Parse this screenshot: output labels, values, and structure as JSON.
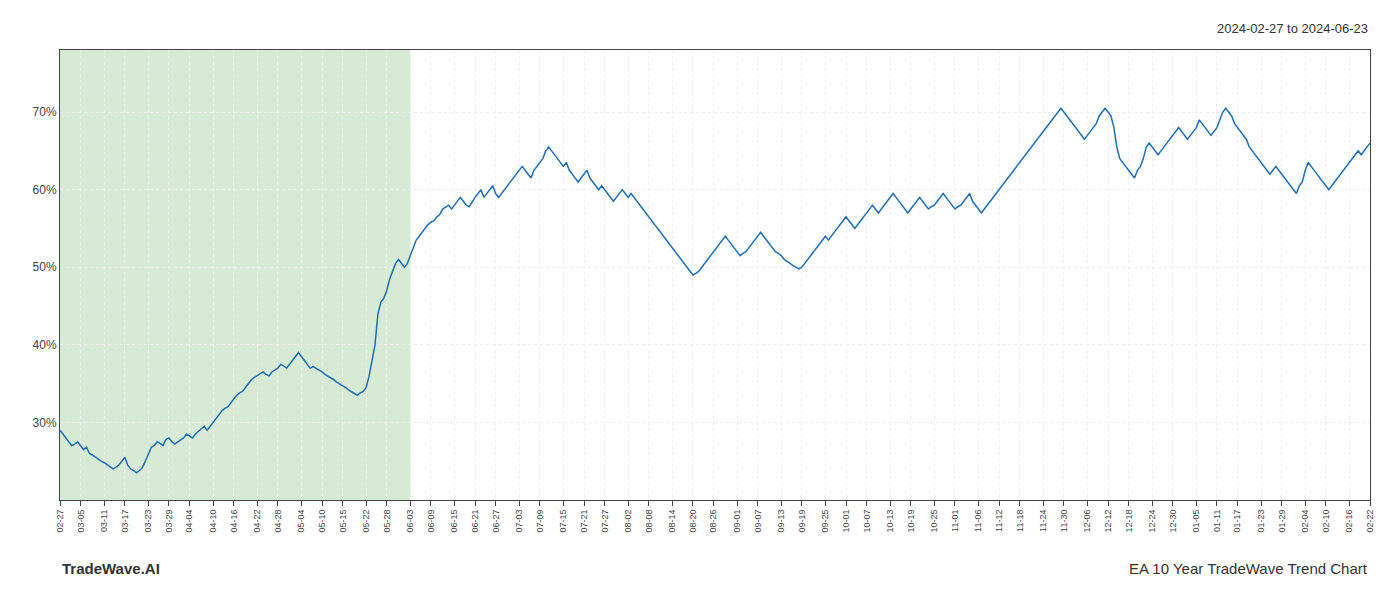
{
  "chart_data": {
    "type": "line",
    "annotations": [
      "2024-02-27 to 2024-06-23",
      "TradeWave.AI",
      "EA 10 Year TradeWave Trend Chart"
    ],
    "categories": [
      "02-27",
      null,
      null,
      null,
      null,
      null,
      null,
      "03-05",
      null,
      null,
      null,
      null,
      null,
      null,
      null,
      "03-11",
      null,
      null,
      null,
      null,
      null,
      null,
      "03-17",
      null,
      null,
      null,
      null,
      null,
      null,
      null,
      "03-23",
      null,
      null,
      null,
      null,
      null,
      null,
      "03-29",
      null,
      null,
      null,
      null,
      null,
      null,
      "04-04",
      null,
      null,
      null,
      null,
      null,
      null,
      null,
      "04-10",
      null,
      null,
      null,
      null,
      null,
      null,
      "04-16",
      null,
      null,
      null,
      null,
      null,
      null,
      null,
      "04-22",
      null,
      null,
      null,
      null,
      null,
      null,
      "04-28",
      null,
      null,
      null,
      null,
      null,
      null,
      null,
      "05-04",
      null,
      null,
      null,
      null,
      null,
      null,
      "05-10",
      null,
      null,
      null,
      null,
      null,
      null,
      "05-15",
      null,
      null,
      null,
      null,
      null,
      null,
      null,
      "05-22",
      null,
      null,
      null,
      null,
      null,
      null,
      "05-28",
      null,
      null,
      null,
      null,
      null,
      null,
      null,
      "06-03",
      null,
      null,
      null,
      null,
      null,
      null,
      "06-09",
      null,
      null,
      null,
      null,
      null,
      null,
      null,
      "06-15",
      null,
      null,
      null,
      null,
      null,
      null,
      "06-21",
      null,
      null,
      null,
      null,
      null,
      null,
      "06-27",
      null,
      null,
      null,
      null,
      null,
      null,
      null,
      "07-03",
      null,
      null,
      null,
      null,
      null,
      null,
      "07-09",
      null,
      null,
      null,
      null,
      null,
      null,
      null,
      "07-15",
      null,
      null,
      null,
      null,
      null,
      null,
      "07-21",
      null,
      null,
      null,
      null,
      null,
      null,
      "07-27",
      null,
      null,
      null,
      null,
      null,
      null,
      null,
      "08-02",
      null,
      null,
      null,
      null,
      null,
      null,
      "08-08",
      null,
      null,
      null,
      null,
      null,
      null,
      null,
      "08-14",
      null,
      null,
      null,
      null,
      null,
      null,
      "08-20",
      null,
      null,
      null,
      null,
      null,
      null,
      "08-26",
      null,
      null,
      null,
      null,
      null,
      null,
      null,
      "09-01",
      null,
      null,
      null,
      null,
      null,
      null,
      "09-07",
      null,
      null,
      null,
      null,
      null,
      null,
      null,
      "09-13",
      null,
      null,
      null,
      null,
      null,
      null,
      "09-19",
      null,
      null,
      null,
      null,
      null,
      null,
      null,
      "09-25",
      null,
      null,
      null,
      null,
      null,
      null,
      "10-01",
      null,
      null,
      null,
      null,
      null,
      null,
      "10-07",
      null,
      null,
      null,
      null,
      null,
      null,
      null,
      "10-13",
      null,
      null,
      null,
      null,
      null,
      null,
      "10-19",
      null,
      null,
      null,
      null,
      null,
      null,
      null,
      "10-25",
      null,
      null,
      null,
      null,
      null,
      null,
      "11-01",
      null,
      null,
      null,
      null,
      null,
      null,
      null,
      "11-06",
      null,
      null,
      null,
      null,
      null,
      null,
      "11-12",
      null,
      null,
      null,
      null,
      null,
      null,
      "11-18",
      null,
      null,
      null,
      null,
      null,
      null,
      null,
      "11-24",
      null,
      null,
      null,
      null,
      null,
      null,
      "11-30",
      null,
      null,
      null,
      null,
      null,
      null,
      null,
      "12-06",
      null,
      null,
      null,
      null,
      null,
      null,
      "12-12",
      null,
      null,
      null,
      null,
      null,
      null,
      "12-18",
      null,
      null,
      null,
      null,
      null,
      null,
      null,
      "12-24",
      null,
      null,
      null,
      null,
      null,
      null,
      "12-30",
      null,
      null,
      null,
      null,
      null,
      null,
      null,
      "01-05",
      null,
      null,
      null,
      null,
      null,
      null,
      "01-11",
      null,
      null,
      null,
      null,
      null,
      null,
      "01-17",
      null,
      null,
      null,
      null,
      null,
      null,
      null,
      "01-23",
      null,
      null,
      null,
      null,
      null,
      null,
      "01-29",
      null,
      null,
      null,
      null,
      null,
      null,
      null,
      "02-04",
      null,
      null,
      null,
      null,
      null,
      null,
      "02-10",
      null,
      null,
      null,
      null,
      null,
      null,
      null,
      "02-16",
      null,
      null,
      null,
      null,
      null,
      null,
      "02-22"
    ],
    "values": [
      29.0,
      28.5,
      28.0,
      27.5,
      27.0,
      27.2,
      27.5,
      27.0,
      26.5,
      26.8,
      26.0,
      25.8,
      25.5,
      25.2,
      25.0,
      24.8,
      24.5,
      24.2,
      24.0,
      24.2,
      24.5,
      25.0,
      25.5,
      24.5,
      24.0,
      23.8,
      23.5,
      23.8,
      24.2,
      25.0,
      26.0,
      26.8,
      27.0,
      27.5,
      27.3,
      27.0,
      27.8,
      28.0,
      27.5,
      27.2,
      27.5,
      27.8,
      28.0,
      28.5,
      28.2,
      28.0,
      28.5,
      28.8,
      29.2,
      29.5,
      29.0,
      29.5,
      30.0,
      30.5,
      31.0,
      31.5,
      31.8,
      32.0,
      32.5,
      33.0,
      33.5,
      33.8,
      34.0,
      34.5,
      35.0,
      35.5,
      35.8,
      36.0,
      36.2,
      36.5,
      36.2,
      36.0,
      36.5,
      36.8,
      37.0,
      37.5,
      37.2,
      37.0,
      37.5,
      38.0,
      38.5,
      39.0,
      38.5,
      38.0,
      37.5,
      37.0,
      37.2,
      37.0,
      36.8,
      36.5,
      36.2,
      36.0,
      35.8,
      35.5,
      35.2,
      35.0,
      34.8,
      34.5,
      34.2,
      34.0,
      33.8,
      33.5,
      33.8,
      34.0,
      34.5,
      36.0,
      38.0,
      40.0,
      44.0,
      45.5,
      46.0,
      47.0,
      48.5,
      49.5,
      50.5,
      51.0,
      50.5,
      50.0,
      50.5,
      51.5,
      52.5,
      53.5,
      54.0,
      54.5,
      55.0,
      55.5,
      55.8,
      56.0,
      56.5,
      56.8,
      57.5,
      57.8,
      58.0,
      57.5,
      58.0,
      58.5,
      59.0,
      58.5,
      58.0,
      57.8,
      58.5,
      59.0,
      59.5,
      60.0,
      59.0,
      59.5,
      60.0,
      60.5,
      59.5,
      59.0,
      59.5,
      60.0,
      60.5,
      61.0,
      61.5,
      62.0,
      62.5,
      63.0,
      62.5,
      62.0,
      61.5,
      62.5,
      63.0,
      63.5,
      64.0,
      65.0,
      65.5,
      65.0,
      64.5,
      64.0,
      63.5,
      63.0,
      63.5,
      62.5,
      62.0,
      61.5,
      61.0,
      61.5,
      62.0,
      62.5,
      61.5,
      61.0,
      60.5,
      60.0,
      60.5,
      60.0,
      59.5,
      59.0,
      58.5,
      59.0,
      59.5,
      60.0,
      59.5,
      59.0,
      59.5,
      59.0,
      58.5,
      58.0,
      57.5,
      57.0,
      56.5,
      56.0,
      55.5,
      55.0,
      54.5,
      54.0,
      53.5,
      53.0,
      52.5,
      52.0,
      51.5,
      51.0,
      50.5,
      50.0,
      49.5,
      49.0,
      49.2,
      49.5,
      50.0,
      50.5,
      51.0,
      51.5,
      52.0,
      52.5,
      53.0,
      53.5,
      54.0,
      53.5,
      53.0,
      52.5,
      52.0,
      51.5,
      51.8,
      52.0,
      52.5,
      53.0,
      53.5,
      54.0,
      54.5,
      54.0,
      53.5,
      53.0,
      52.5,
      52.0,
      51.8,
      51.5,
      51.0,
      50.8,
      50.5,
      50.2,
      50.0,
      49.8,
      50.0,
      50.5,
      51.0,
      51.5,
      52.0,
      52.5,
      53.0,
      53.5,
      54.0,
      53.5,
      54.0,
      54.5,
      55.0,
      55.5,
      56.0,
      56.5,
      56.0,
      55.5,
      55.0,
      55.5,
      56.0,
      56.5,
      57.0,
      57.5,
      58.0,
      57.5,
      57.0,
      57.5,
      58.0,
      58.5,
      59.0,
      59.5,
      59.0,
      58.5,
      58.0,
      57.5,
      57.0,
      57.5,
      58.0,
      58.5,
      59.0,
      58.5,
      58.0,
      57.5,
      57.8,
      58.0,
      58.5,
      59.0,
      59.5,
      59.0,
      58.5,
      58.0,
      57.5,
      57.8,
      58.0,
      58.5,
      59.0,
      59.5,
      58.5,
      58.0,
      57.5,
      57.0,
      57.5,
      58.0,
      58.5,
      59.0,
      59.5,
      60.0,
      60.5,
      61.0,
      61.5,
      62.0,
      62.5,
      63.0,
      63.5,
      64.0,
      64.5,
      65.0,
      65.5,
      66.0,
      66.5,
      67.0,
      67.5,
      68.0,
      68.5,
      69.0,
      69.5,
      70.0,
      70.5,
      70.0,
      69.5,
      69.0,
      68.5,
      68.0,
      67.5,
      67.0,
      66.5,
      67.0,
      67.5,
      68.0,
      68.5,
      69.5,
      70.0,
      70.5,
      70.0,
      69.5,
      68.0,
      65.5,
      64.0,
      63.5,
      63.0,
      62.5,
      62.0,
      61.5,
      62.5,
      63.0,
      64.0,
      65.5,
      66.0,
      65.5,
      65.0,
      64.5,
      65.0,
      65.5,
      66.0,
      66.5,
      67.0,
      67.5,
      68.0,
      67.5,
      67.0,
      66.5,
      67.0,
      67.5,
      68.0,
      69.0,
      68.5,
      68.0,
      67.5,
      67.0,
      67.5,
      68.0,
      69.0,
      70.0,
      70.5,
      70.0,
      69.5,
      68.5,
      68.0,
      67.5,
      67.0,
      66.5,
      65.5,
      65.0,
      64.5,
      64.0,
      63.5,
      63.0,
      62.5,
      62.0,
      62.5,
      63.0,
      62.5,
      62.0,
      61.5,
      61.0,
      60.5,
      60.0,
      59.5,
      60.5,
      61.0,
      62.5,
      63.5,
      63.0,
      62.5,
      62.0,
      61.5,
      61.0,
      60.5,
      60.0,
      60.5,
      61.0,
      61.5,
      62.0,
      62.5,
      63.0,
      63.5,
      64.0,
      64.5,
      65.0,
      64.5,
      65.0,
      65.5,
      66.0
    ],
    "color": "#1f6eb5",
    "shaded_region": {
      "x_start": 0,
      "x_end": 119,
      "color": "#d6ead6"
    },
    "ylim": [
      20,
      78
    ],
    "yticks": [
      {
        "value": 30,
        "label": "30%"
      },
      {
        "value": 40,
        "label": "40%"
      },
      {
        "value": 50,
        "label": "50%"
      },
      {
        "value": 60,
        "label": "60%"
      },
      {
        "value": 70,
        "label": "70%"
      }
    ],
    "grid": true
  }
}
